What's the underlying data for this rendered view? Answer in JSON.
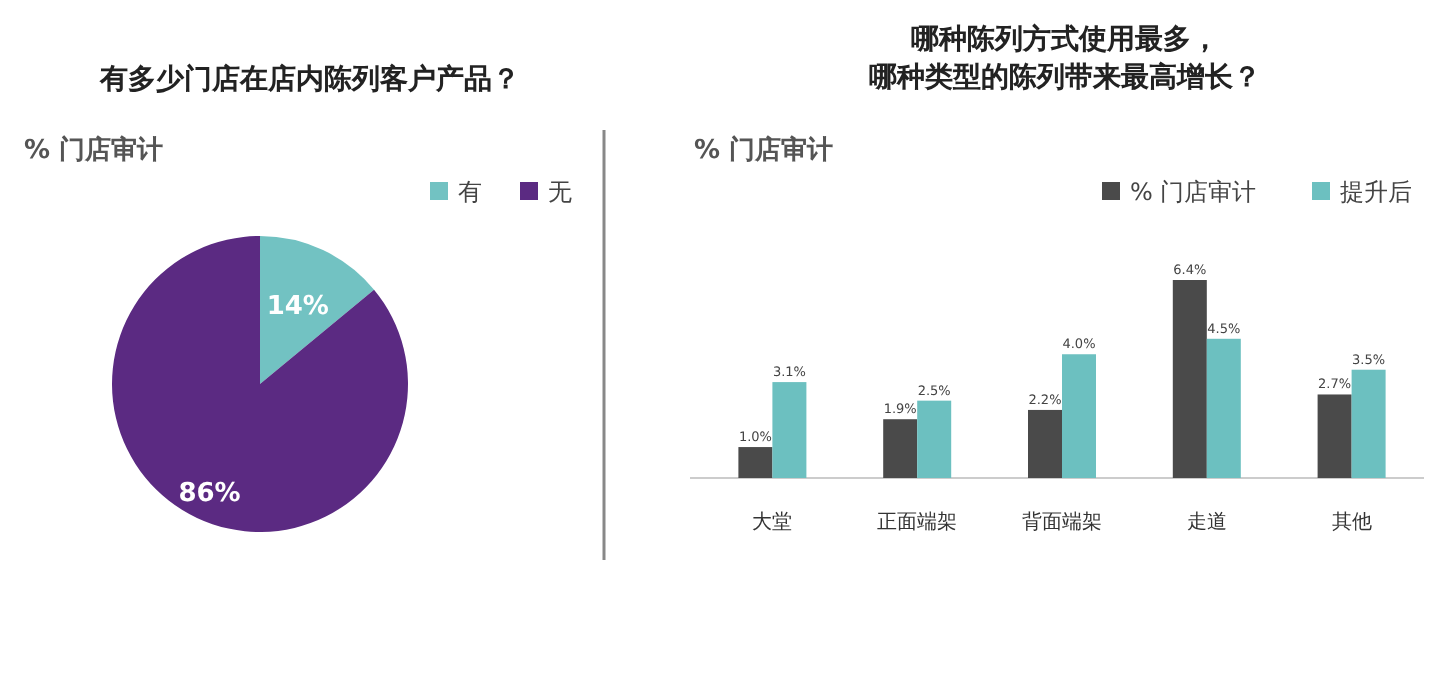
{
  "chart_data": [
    {
      "type": "pie",
      "title": "有多少门店在店内陈列客户产品？",
      "subtitle": "% 门店审计",
      "categories": [
        "有",
        "无"
      ],
      "values": [
        14,
        86
      ],
      "colors": [
        "#72c2c2",
        "#5b2a82"
      ],
      "value_labels": [
        "14%",
        "86%"
      ],
      "legend": "top right"
    },
    {
      "type": "bar",
      "title": "哪种陈列方式使用最多，哪种类型的陈列带来最高增长？",
      "subtitle": "%  门店审计",
      "categories": [
        "大堂",
        "正面端架",
        "背面端架",
        "走道",
        "其他"
      ],
      "series": [
        {
          "name": "% 门店审计",
          "color": "#4a4a4a",
          "values": [
            1.0,
            1.9,
            2.2,
            6.4,
            2.7
          ],
          "value_labels": [
            "1.0%",
            "1.9%",
            "2.2%",
            "6.4%",
            "2.7%"
          ]
        },
        {
          "name": "提升后",
          "color": "#6cc0c0",
          "values": [
            3.1,
            2.5,
            4.0,
            4.5,
            3.5
          ],
          "value_labels": [
            "3.1%",
            "2.5%",
            "4.0%",
            "4.5%",
            "3.5%"
          ]
        }
      ],
      "legend": "top right"
    }
  ]
}
